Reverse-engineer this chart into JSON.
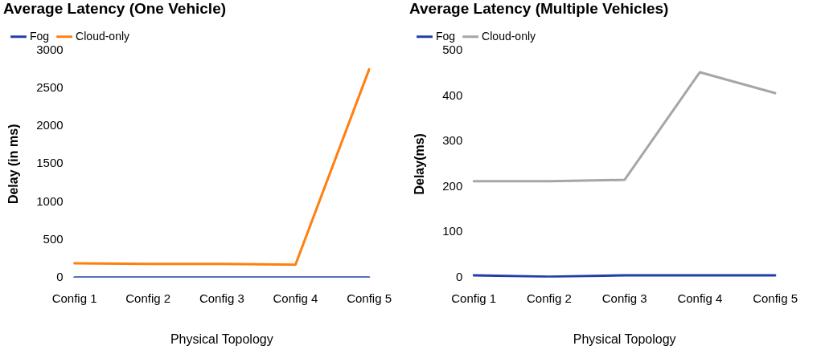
{
  "chart_data": [
    {
      "type": "line",
      "title": "Average Latency (One Vehicle)",
      "xlabel": "Physical Topology",
      "ylabel": "Delay (in ms)",
      "categories": [
        "Config 1",
        "Config 2",
        "Config 3",
        "Config 4",
        "Config 5"
      ],
      "series": [
        {
          "name": "Fog",
          "color": "#1f3fa8",
          "values": [
            0,
            0,
            0,
            0,
            0
          ]
        },
        {
          "name": "Cloud-only",
          "color": "#ff7f0e",
          "values": [
            190,
            180,
            180,
            170,
            2750
          ]
        }
      ],
      "ylim": [
        0,
        3000
      ],
      "yticks": [
        0,
        500,
        1000,
        1500,
        2000,
        2500,
        3000
      ],
      "grid": false,
      "legend": "top left",
      "marker": "none",
      "line_style": "solid"
    },
    {
      "type": "line",
      "title": "Average Latency (Multiple Vehicles)",
      "xlabel": "Physical Topology",
      "ylabel": "Delay(ms)",
      "categories": [
        "Config 1",
        "Config 2",
        "Config 3",
        "Config 4",
        "Config 5"
      ],
      "series": [
        {
          "name": "Fog",
          "color": "#1f3fa8",
          "values": [
            5,
            2,
            5,
            5,
            5
          ]
        },
        {
          "name": "Cloud-only",
          "color": "#a6a6a6",
          "values": [
            212,
            212,
            215,
            452,
            406
          ]
        }
      ],
      "ylim": [
        0,
        500
      ],
      "yticks": [
        0,
        100,
        200,
        300,
        400,
        500
      ],
      "grid": false,
      "legend": "top left",
      "marker": "none",
      "line_style": "solid"
    }
  ]
}
